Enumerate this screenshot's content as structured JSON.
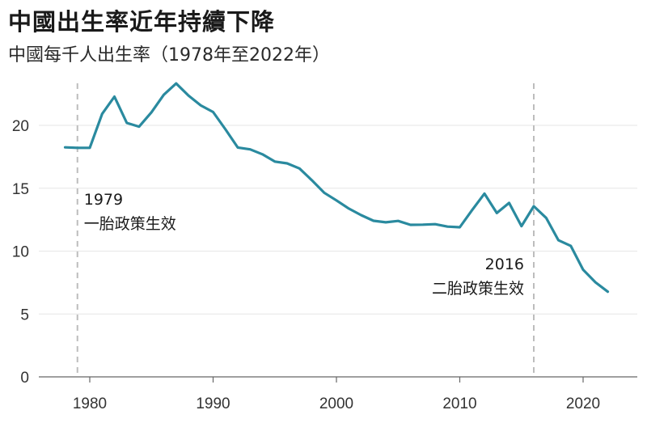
{
  "chart_data": {
    "type": "line",
    "title": "中國出生率近年持續下降",
    "subtitle": "中國每千人出生率（1978年至2022年）",
    "xlabel": "",
    "ylabel": "",
    "xlim": [
      1977,
      2024
    ],
    "ylim": [
      0,
      25
    ],
    "x_ticks": [
      "1980",
      "1990",
      "2000",
      "2010",
      "2020"
    ],
    "y_ticks": [
      "0",
      "5",
      "10",
      "15",
      "20"
    ],
    "grid": true,
    "line_color": "#2a8a9f",
    "series": [
      {
        "x": [
          1978,
          1979,
          1980,
          1981,
          1982,
          1983,
          1984,
          1985,
          1986,
          1987,
          1988,
          1989,
          1990,
          1991,
          1992,
          1993,
          1994,
          1995,
          1996,
          1997,
          1998,
          1999,
          2000,
          2001,
          2002,
          2003,
          2004,
          2005,
          2006,
          2007,
          2008,
          2009,
          2010,
          2011,
          2012,
          2013,
          2014,
          2015,
          2016,
          2017,
          2018,
          2019,
          2020,
          2021,
          2022
        ],
        "values": [
          18.25,
          18.21,
          18.21,
          20.91,
          22.28,
          20.19,
          19.9,
          21.04,
          22.43,
          23.33,
          22.37,
          21.58,
          21.06,
          19.68,
          18.24,
          18.09,
          17.7,
          17.12,
          16.98,
          16.57,
          15.64,
          14.64,
          14.03,
          13.38,
          12.86,
          12.41,
          12.29,
          12.4,
          12.09,
          12.1,
          12.14,
          11.95,
          11.9,
          13.27,
          14.57,
          13.03,
          13.83,
          11.99,
          13.57,
          12.64,
          10.86,
          10.41,
          8.52,
          7.52,
          6.77
        ]
      }
    ],
    "annotations": [
      {
        "x": 1979,
        "lines": [
          "1979",
          "一胎政策生效"
        ],
        "align": "left"
      },
      {
        "x": 2016,
        "lines": [
          "2016",
          "二胎政策生效"
        ],
        "align": "right"
      }
    ]
  }
}
